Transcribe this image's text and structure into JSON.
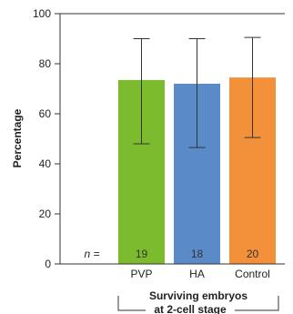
{
  "chart_data": {
    "type": "bar",
    "categories": [
      "PVP",
      "HA",
      "Control"
    ],
    "values": [
      73.5,
      72,
      74.5
    ],
    "errors": [
      {
        "low": 48,
        "high": 90
      },
      {
        "low": 46.5,
        "high": 90
      },
      {
        "low": 50.5,
        "high": 90.5
      }
    ],
    "n_label": "n =",
    "n_values": [
      "19",
      "18",
      "20"
    ],
    "colors": [
      "#7dbb2e",
      "#5b8ac9",
      "#f2913a"
    ],
    "xlabel": "Surviving embryos at 2-cell stage",
    "xlabel_lines": [
      "Surviving embryos",
      "at 2-cell stage"
    ],
    "ylabel": "Percentage",
    "ylim": [
      0,
      100
    ],
    "yticks": [
      0,
      20,
      40,
      60,
      80,
      100
    ],
    "grid": false
  }
}
